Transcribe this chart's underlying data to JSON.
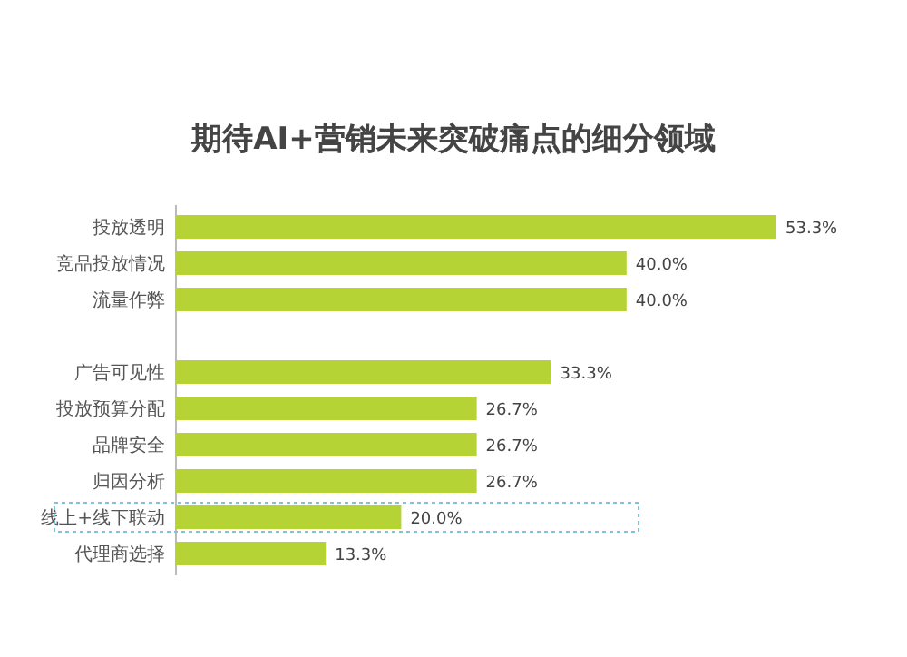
{
  "chart_data": {
    "type": "bar",
    "orientation": "horizontal",
    "title": "期待AI+营销未来突破痛点的细分领域",
    "categories": [
      "投放透明",
      "竞品投放情况",
      "流量作弊",
      null,
      "广告可见性",
      "投放预算分配",
      "品牌安全",
      "归因分析",
      "线上+线下联动",
      "代理商选择"
    ],
    "values": [
      53.3,
      40.0,
      40.0,
      null,
      33.3,
      26.7,
      26.7,
      26.7,
      20.0,
      13.3
    ],
    "value_labels": [
      "53.3%",
      "40.0%",
      "40.0%",
      null,
      "33.3%",
      "26.7%",
      "26.7%",
      "26.7%",
      "20.0%",
      "13.3%"
    ],
    "color": "#b5d334"
  }
}
